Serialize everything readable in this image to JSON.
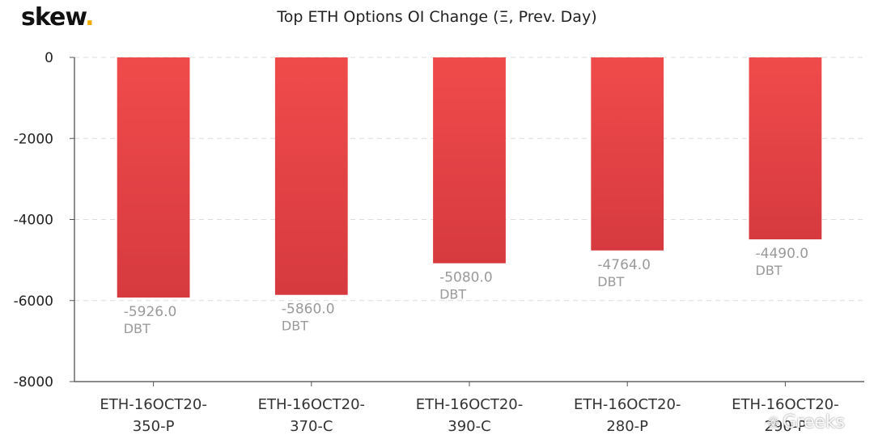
{
  "brand": {
    "logo_text": "skew",
    "logo_dot": ".",
    "accent": "#f2a900"
  },
  "watermark": {
    "icon": "wechat-icon",
    "text": "Greeks"
  },
  "chart_data": {
    "type": "bar",
    "title": "Top ETH Options OI Change (Ξ, Prev. Day)",
    "categories": [
      "ETH-16OCT20-350-P",
      "ETH-16OCT20-370-C",
      "ETH-16OCT20-390-C",
      "ETH-16OCT20-280-P",
      "ETH-16OCT20-290-P"
    ],
    "category_lines": [
      [
        "ETH-16OCT20-",
        "350-P"
      ],
      [
        "ETH-16OCT20-",
        "370-C"
      ],
      [
        "ETH-16OCT20-",
        "390-C"
      ],
      [
        "ETH-16OCT20-",
        "280-P"
      ],
      [
        "ETH-16OCT20-",
        "290-P"
      ]
    ],
    "values": [
      -5926.0,
      -5860.0,
      -5080.0,
      -4764.0,
      -4490.0
    ],
    "value_labels": [
      "-5926.0",
      "-5860.0",
      "-5080.0",
      "-4764.0",
      "-4490.0"
    ],
    "unit_label": "DBT",
    "yticks": [
      0,
      -2000,
      -4000,
      -6000,
      -8000
    ],
    "ytick_labels": [
      "0",
      "-2000",
      "-4000",
      "-6000",
      "-8000"
    ],
    "ylim": [
      -8000,
      0
    ],
    "grid": true,
    "bar_color_top": "#f04b4b",
    "bar_color_bottom": "#d63a3f"
  }
}
